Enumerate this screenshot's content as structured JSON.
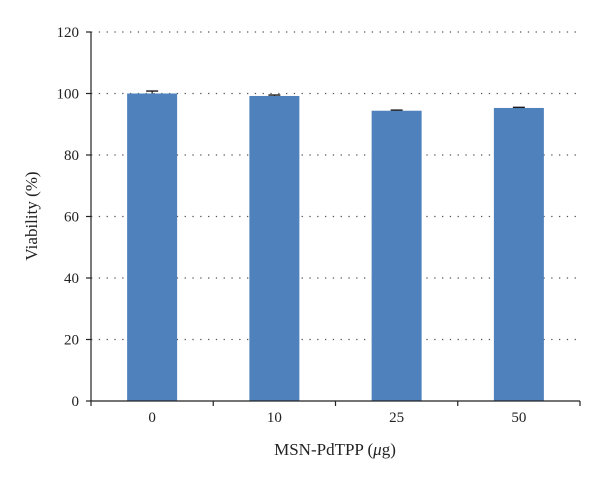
{
  "chart_data": {
    "type": "bar",
    "title": "",
    "xlabel": "MSN-PdTPP (μg)",
    "xlabel_parts": {
      "prefix": "MSN-PdTPP (",
      "unit": "μ",
      "suffix": "g)"
    },
    "ylabel": "Viability (%)",
    "categories": [
      "0",
      "10",
      "25",
      "50"
    ],
    "values": [
      100.0,
      99.2,
      94.4,
      95.3
    ],
    "errors": [
      0.8,
      0.3,
      0.2,
      0.2
    ],
    "ylim": [
      0,
      120
    ],
    "yticks": [
      0,
      20,
      40,
      60,
      80,
      100,
      120
    ],
    "ytick_labels": [
      "0",
      "20",
      "40",
      "60",
      "80",
      "100",
      "120"
    ],
    "grid": "horizontal-dotted",
    "legend": "none",
    "bar_color": "#4f81bd",
    "grid_color": "#555555",
    "axis_color": "#222222"
  }
}
